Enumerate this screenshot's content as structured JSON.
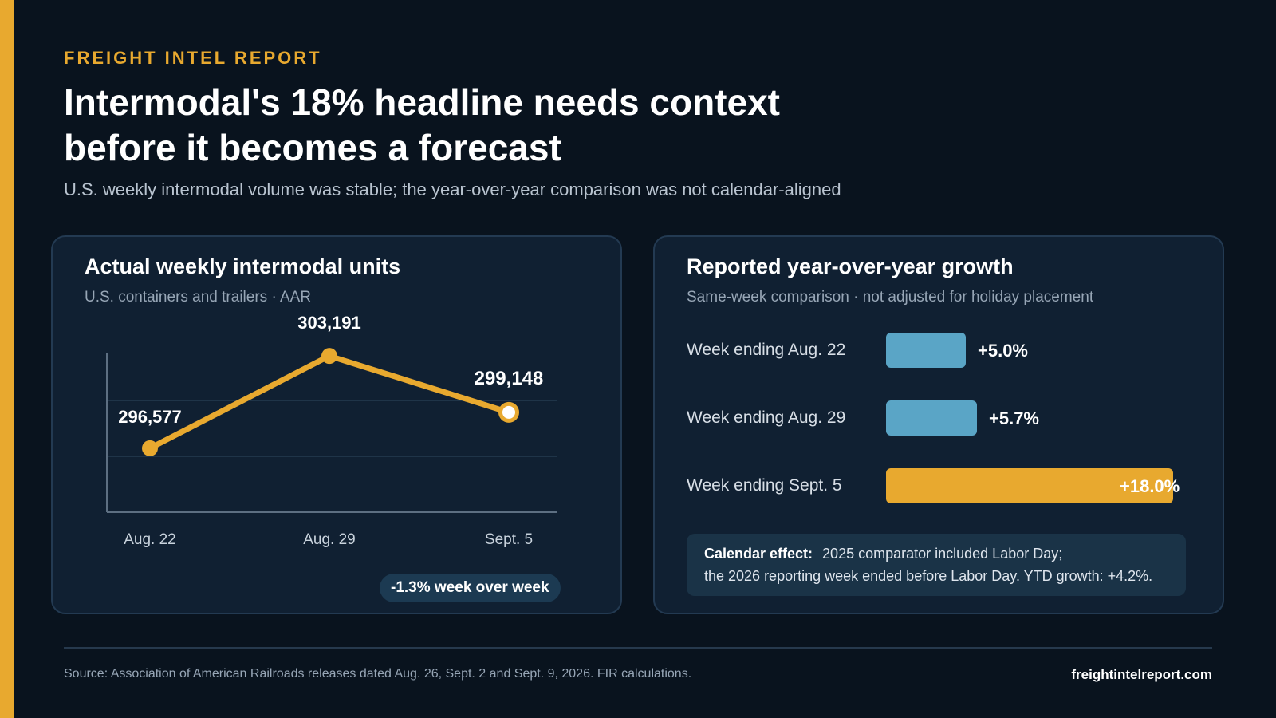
{
  "kicker": "FREIGHT INTEL REPORT",
  "headline": {
    "line1": "Intermodal's 18% headline needs context",
    "line2": "before it becomes a forecast"
  },
  "deck": "U.S. weekly intermodal volume was stable; the year-over-year comparison was not calendar-aligned",
  "colors": {
    "accent": "#e8a92f",
    "background": "#09131e",
    "panel": "#102032",
    "bar_blue": "#5aa5c6",
    "bar_highlight": "#e8a92f"
  },
  "chart_data": [
    {
      "type": "line",
      "title": "Actual weekly intermodal units",
      "subtitle": "U.S. containers and trailers · AAR",
      "categories": [
        "Aug. 22",
        "Aug. 29",
        "Sept. 5"
      ],
      "series": [
        {
          "values": [
            296577,
            303191,
            299148
          ]
        }
      ],
      "data_labels": [
        "296,577",
        "303,191",
        "299,148"
      ],
      "ylim": [
        292000,
        306000
      ],
      "grid": true,
      "legend": "none",
      "annotation": "-1.3% week over week"
    },
    {
      "type": "bar",
      "orientation": "horizontal",
      "title": "Reported year-over-year growth",
      "subtitle": "Same-week comparison · not adjusted for holiday placement",
      "categories": [
        "Week ending Aug. 22",
        "Week ending Aug. 29",
        "Week ending Sept. 5"
      ],
      "values": [
        5.0,
        5.7,
        18.0
      ],
      "value_labels": [
        "+5.0%",
        "+5.7%",
        "+18.0%"
      ],
      "highlight_index": 2,
      "xlim": [
        0,
        18.0
      ]
    }
  ],
  "note": {
    "label": "Calendar effect:",
    "line1": "2025 comparator included Labor Day;",
    "line2": "the 2026 reporting week ended before Labor Day. YTD growth: +4.2%."
  },
  "footer": {
    "source": "Source: Association of American Railroads releases dated Aug. 26, Sept. 2 and Sept. 9, 2026. FIR calculations.",
    "site": "freightintelreport.com"
  }
}
